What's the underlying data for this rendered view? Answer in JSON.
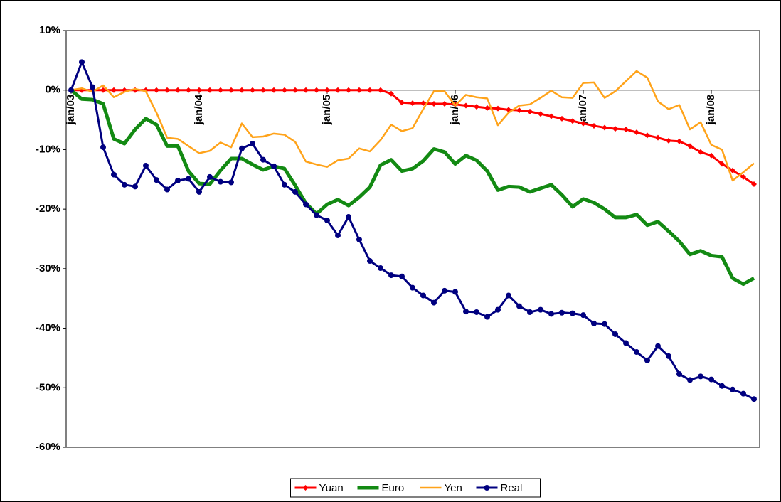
{
  "chart_data": {
    "type": "line",
    "categories": [
      "jan/03",
      null,
      null,
      null,
      null,
      null,
      null,
      null,
      null,
      null,
      null,
      null,
      "jan/04",
      null,
      null,
      null,
      null,
      null,
      null,
      null,
      null,
      null,
      null,
      null,
      "jan/05",
      null,
      null,
      null,
      null,
      null,
      null,
      null,
      null,
      null,
      null,
      null,
      "jan/06",
      null,
      null,
      null,
      null,
      null,
      null,
      null,
      null,
      null,
      null,
      null,
      "jan/07",
      null,
      null,
      null,
      null,
      null,
      null,
      null,
      null,
      null,
      null,
      null,
      "jan/08",
      null,
      null,
      null,
      null
    ],
    "series": [
      {
        "name": "Yuan",
        "color": "#ff0000",
        "marker": "diamond",
        "values": [
          0,
          0,
          0,
          0,
          0,
          0,
          0,
          0,
          0,
          0,
          0,
          0,
          0,
          0,
          0,
          0,
          0,
          0,
          0,
          0,
          0,
          0,
          0,
          0,
          0,
          0,
          0,
          0,
          0,
          0,
          -0.6,
          -2.1,
          -2.2,
          -2.2,
          -2.3,
          -2.3,
          -2.4,
          -2.6,
          -2.8,
          -3.0,
          -3.1,
          -3.3,
          -3.4,
          -3.6,
          -4.0,
          -4.4,
          -4.8,
          -5.2,
          -5.6,
          -6.0,
          -6.3,
          -6.5,
          -6.6,
          -7.1,
          -7.6,
          -8.0,
          -8.5,
          -8.6,
          -9.4,
          -10.4,
          -11.0,
          -12.4,
          -13.5,
          -14.6,
          -15.8
        ]
      },
      {
        "name": "Euro",
        "color": "#138a13",
        "values": [
          0,
          -1.5,
          -1.6,
          -2.3,
          -8.2,
          -9.0,
          -6.6,
          -4.8,
          -5.8,
          -9.4,
          -9.4,
          -13.6,
          -15.7,
          -15.8,
          -13.5,
          -11.5,
          -11.5,
          -12.5,
          -13.4,
          -12.8,
          -13.2,
          -16.0,
          -19.0,
          -20.8,
          -19.2,
          -18.4,
          -19.4,
          -18.0,
          -16.3,
          -12.6,
          -11.7,
          -13.6,
          -13.2,
          -11.9,
          -9.9,
          -10.4,
          -12.4,
          -11.0,
          -11.8,
          -13.6,
          -16.8,
          -16.2,
          -16.3,
          -17.1,
          -16.5,
          -15.9,
          -17.6,
          -19.6,
          -18.3,
          -18.9,
          -20.0,
          -21.4,
          -21.4,
          -20.9,
          -22.7,
          -22.1,
          -23.7,
          -25.4,
          -27.6,
          -27.0,
          -27.8,
          -28.0,
          -31.6,
          -32.6,
          -31.6
        ]
      },
      {
        "name": "Yen",
        "color": "#ffa31a",
        "values": [
          0,
          0.3,
          -0.3,
          0.8,
          -1.2,
          -0.3,
          0.2,
          -0.2,
          -3.8,
          -8.0,
          -8.2,
          -9.4,
          -10.6,
          -10.2,
          -8.8,
          -9.6,
          -5.6,
          -7.9,
          -7.8,
          -7.3,
          -7.5,
          -8.7,
          -12.0,
          -12.5,
          -12.9,
          -11.8,
          -11.5,
          -9.8,
          -10.3,
          -8.4,
          -5.8,
          -6.9,
          -6.4,
          -3.2,
          -0.2,
          -0.2,
          -2.6,
          -0.8,
          -1.2,
          -1.4,
          -5.9,
          -3.8,
          -2.6,
          -2.4,
          -1.3,
          -0.1,
          -1.2,
          -1.3,
          1.2,
          1.3,
          -1.3,
          -0.2,
          1.5,
          3.2,
          2.1,
          -1.9,
          -3.2,
          -2.5,
          -6.6,
          -5.4,
          -9.2,
          -10.0,
          -15.2,
          -13.8,
          -12.3
        ]
      },
      {
        "name": "Real",
        "color": "#000080",
        "marker": "circle",
        "values": [
          0,
          4.7,
          0.5,
          -9.6,
          -14.2,
          -15.9,
          -16.2,
          -12.7,
          -15.1,
          -16.7,
          -15.2,
          -14.9,
          -17.1,
          -14.6,
          -15.4,
          -15.5,
          -9.8,
          -9.0,
          -11.7,
          -12.8,
          -15.9,
          -17.1,
          -19.2,
          -21.0,
          -21.9,
          -24.4,
          -21.3,
          -25.1,
          -28.7,
          -29.9,
          -31.1,
          -31.3,
          -33.2,
          -34.5,
          -35.7,
          -33.7,
          -33.9,
          -37.2,
          -37.3,
          -38.1,
          -36.9,
          -34.5,
          -36.3,
          -37.3,
          -36.9,
          -37.6,
          -37.4,
          -37.5,
          -37.8,
          -39.2,
          -39.3,
          -41.0,
          -42.5,
          -44.0,
          -45.4,
          -43.0,
          -44.7,
          -47.7,
          -48.7,
          -48.1,
          -48.6,
          -49.7,
          -50.3,
          -51.0,
          -51.9
        ]
      }
    ],
    "ylim": [
      -60,
      10
    ],
    "yticks": [
      {
        "value": -60,
        "label": "-60%"
      },
      {
        "value": -50,
        "label": "-50%"
      },
      {
        "value": -40,
        "label": "-40%"
      },
      {
        "value": -30,
        "label": "-30%"
      },
      {
        "value": -20,
        "label": "-20%"
      },
      {
        "value": -10,
        "label": "-10%"
      },
      {
        "value": 0,
        "label": "0%"
      },
      {
        "value": 10,
        "label": "10%"
      }
    ],
    "legend": "bottom"
  }
}
